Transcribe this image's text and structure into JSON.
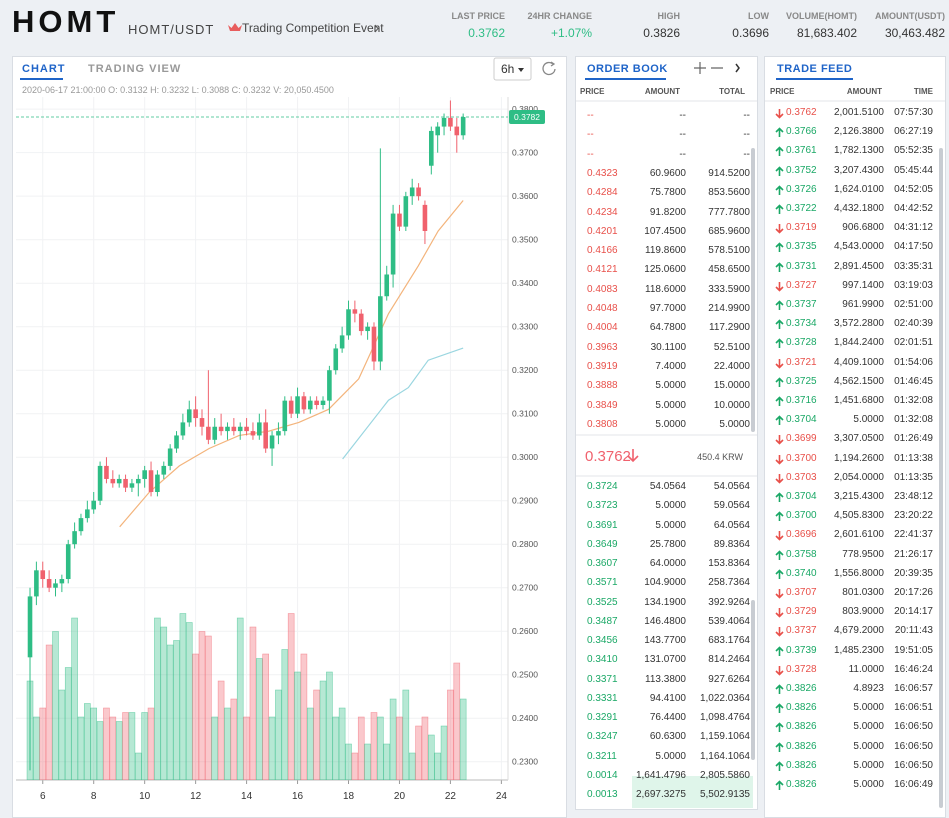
{
  "header": {
    "logo": "HOMT",
    "pair": "HOMT/USDT",
    "event": "Trading Competition Event",
    "stats": [
      {
        "label": "LAST PRICE",
        "value": "0.3762",
        "color": "#2ebd85"
      },
      {
        "label": "24HR CHANGE",
        "value": "+1.07%",
        "color": "#2ebd85"
      },
      {
        "label": "HIGH",
        "value": "0.3826",
        "color": "#333333"
      },
      {
        "label": "LOW",
        "value": "0.3696",
        "color": "#333333"
      },
      {
        "label": "VOLUME(HOMT)",
        "value": "81,683.402",
        "color": "#333333"
      },
      {
        "label": "AMOUNT(USDT)",
        "value": "30,463.482",
        "color": "#333333"
      }
    ]
  },
  "chart_panel": {
    "tabs": [
      "CHART",
      "TRADING VIEW"
    ],
    "interval": "6h",
    "chart": {
      "type": "candlestick",
      "ohlc": "2020-06-17 21:00:00   O: 0.3132   H: 0.3232   L: 0.3088   C: 0.3232   V: 20,050.4500",
      "up_color": "#2ebd85",
      "down_color": "#f0616d",
      "grid": true,
      "xlim": [
        4.95,
        24.26
      ],
      "xticks": [
        6,
        8,
        10,
        12,
        14,
        16,
        18,
        20,
        22,
        24
      ],
      "ylim": [
        0.2258,
        0.3828
      ],
      "yticks": [
        {
          "value": 0.23,
          "label": "0.2300"
        },
        {
          "value": 0.24,
          "label": "0.2400"
        },
        {
          "value": 0.25,
          "label": "0.2500"
        },
        {
          "value": 0.26,
          "label": "0.2600"
        },
        {
          "value": 0.27,
          "label": "0.2700"
        },
        {
          "value": 0.28,
          "label": "0.2800"
        },
        {
          "value": 0.29,
          "label": "0.2900"
        },
        {
          "value": 0.3,
          "label": "0.3000"
        },
        {
          "value": 0.31,
          "label": "0.3100"
        },
        {
          "value": 0.32,
          "label": "0.3200"
        },
        {
          "value": 0.33,
          "label": "0.3300"
        },
        {
          "value": 0.34,
          "label": "0.3400"
        },
        {
          "value": 0.35,
          "label": "0.3500"
        },
        {
          "value": 0.36,
          "label": "0.3600"
        },
        {
          "value": 0.37,
          "label": "0.3700"
        },
        {
          "value": 0.38,
          "label": "0.3800"
        }
      ],
      "vlim": [
        0,
        40000
      ],
      "current_price": 0.3782,
      "x": [
        5.5,
        5.75,
        6,
        6.25,
        6.5,
        6.75,
        7,
        7.25,
        7.5,
        7.75,
        8,
        8.25,
        8.5,
        8.75,
        9,
        9.25,
        9.5,
        9.75,
        10,
        10.25,
        10.5,
        10.75,
        11,
        11.25,
        11.5,
        11.75,
        12,
        12.25,
        12.5,
        12.75,
        13,
        13.25,
        13.5,
        13.75,
        14,
        14.25,
        14.5,
        14.75,
        15,
        15.25,
        15.5,
        15.75,
        16,
        16.25,
        16.5,
        16.75,
        17,
        17.25,
        17.5,
        17.75,
        18,
        18.25,
        18.5,
        18.75,
        19,
        19.25,
        19.5,
        19.75,
        20,
        20.25,
        20.5,
        20.75,
        21,
        21.25,
        21.5,
        21.75,
        22,
        22.25,
        22.5
      ],
      "open": [
        0.254,
        0.268,
        0.274,
        0.272,
        0.27,
        0.271,
        0.272,
        0.28,
        0.283,
        0.286,
        0.288,
        0.29,
        0.298,
        0.295,
        0.294,
        0.295,
        0.293,
        0.294,
        0.295,
        0.297,
        0.292,
        0.296,
        0.298,
        0.302,
        0.305,
        0.308,
        0.311,
        0.309,
        0.307,
        0.304,
        0.307,
        0.306,
        0.307,
        0.306,
        0.307,
        0.306,
        0.305,
        0.308,
        0.302,
        0.305,
        0.306,
        0.313,
        0.31,
        0.314,
        0.311,
        0.313,
        0.312,
        0.313,
        0.32,
        0.325,
        0.328,
        0.334,
        0.333,
        0.329,
        0.33,
        0.322,
        0.337,
        0.342,
        0.356,
        0.353,
        0.36,
        0.362,
        0.358,
        0.367,
        0.374,
        0.376,
        0.378,
        0.376,
        0.374
      ],
      "high": [
        0.27,
        0.276,
        0.276,
        0.274,
        0.272,
        0.273,
        0.281,
        0.285,
        0.287,
        0.29,
        0.292,
        0.299,
        0.3,
        0.297,
        0.296,
        0.296,
        0.295,
        0.296,
        0.298,
        0.299,
        0.297,
        0.299,
        0.303,
        0.306,
        0.31,
        0.313,
        0.314,
        0.311,
        0.32,
        0.309,
        0.31,
        0.308,
        0.309,
        0.308,
        0.309,
        0.308,
        0.31,
        0.311,
        0.306,
        0.308,
        0.314,
        0.314,
        0.316,
        0.315,
        0.314,
        0.314,
        0.314,
        0.321,
        0.326,
        0.33,
        0.336,
        0.336,
        0.334,
        0.331,
        0.331,
        0.371,
        0.344,
        0.358,
        0.358,
        0.361,
        0.364,
        0.363,
        0.359,
        0.376,
        0.377,
        0.379,
        0.382,
        0.378,
        0.379
      ],
      "low": [
        0.228,
        0.266,
        0.27,
        0.269,
        0.268,
        0.269,
        0.271,
        0.279,
        0.282,
        0.285,
        0.287,
        0.289,
        0.294,
        0.293,
        0.293,
        0.292,
        0.292,
        0.291,
        0.293,
        0.291,
        0.291,
        0.295,
        0.297,
        0.301,
        0.304,
        0.307,
        0.307,
        0.305,
        0.303,
        0.303,
        0.305,
        0.304,
        0.305,
        0.304,
        0.305,
        0.304,
        0.304,
        0.301,
        0.298,
        0.303,
        0.305,
        0.309,
        0.309,
        0.31,
        0.31,
        0.311,
        0.311,
        0.31,
        0.319,
        0.324,
        0.327,
        0.331,
        0.328,
        0.327,
        0.32,
        0.32,
        0.336,
        0.339,
        0.352,
        0.352,
        0.358,
        0.359,
        0.349,
        0.365,
        0.37,
        0.374,
        0.375,
        0.37,
        0.373
      ],
      "close": [
        0.268,
        0.274,
        0.272,
        0.27,
        0.271,
        0.272,
        0.28,
        0.283,
        0.286,
        0.288,
        0.29,
        0.298,
        0.295,
        0.294,
        0.295,
        0.293,
        0.294,
        0.295,
        0.297,
        0.292,
        0.296,
        0.298,
        0.302,
        0.305,
        0.308,
        0.311,
        0.309,
        0.307,
        0.304,
        0.307,
        0.306,
        0.307,
        0.306,
        0.307,
        0.306,
        0.305,
        0.308,
        0.302,
        0.305,
        0.306,
        0.313,
        0.31,
        0.314,
        0.311,
        0.313,
        0.312,
        0.313,
        0.32,
        0.325,
        0.328,
        0.334,
        0.333,
        0.329,
        0.33,
        0.322,
        0.337,
        0.342,
        0.356,
        0.353,
        0.36,
        0.362,
        0.36,
        0.352,
        0.375,
        0.376,
        0.378,
        0.376,
        0.374,
        0.3782
      ],
      "volume": [
        22000,
        14000,
        16000,
        30000,
        33000,
        20000,
        25000,
        36000,
        14000,
        17000,
        16000,
        13000,
        16000,
        14000,
        13000,
        15000,
        15000,
        6000,
        15000,
        16000,
        36000,
        34000,
        30000,
        31000,
        37000,
        35000,
        28000,
        33000,
        32000,
        14000,
        22000,
        16000,
        18000,
        36000,
        14000,
        34000,
        27000,
        28000,
        14000,
        20000,
        29000,
        37000,
        24000,
        28000,
        16000,
        20000,
        22000,
        24000,
        14000,
        16000,
        8000,
        6000,
        14000,
        8000,
        15000,
        14000,
        8000,
        18000,
        14000,
        20000,
        6000,
        12000,
        14000,
        10000,
        6000,
        12000,
        20000,
        26000,
        18000
      ],
      "ma": [
        {
          "color": "#f3b47c",
          "x": [
            9.02,
            10.19,
            11.36,
            12.53,
            13.71,
            14.88,
            16.05,
            17.22,
            18.4,
            19.57,
            20.74,
            21.52,
            22.5
          ],
          "values": [
            0.284,
            0.292,
            0.298,
            0.302,
            0.305,
            0.306,
            0.308,
            0.311,
            0.318,
            0.333,
            0.344,
            0.352,
            0.359
          ]
        },
        {
          "color": "#9ad6e0",
          "x": [
            17.77,
            19.57,
            20.35,
            21.13,
            22.5
          ],
          "values": [
            0.2996,
            0.3131,
            0.316,
            0.3223,
            0.3251
          ]
        }
      ]
    }
  },
  "order_book": {
    "title": "ORDER BOOK",
    "columns": [
      "PRICE",
      "AMOUNT",
      "TOTAL"
    ],
    "asks": [
      [
        "--",
        "--",
        "--"
      ],
      [
        "--",
        "--",
        "--"
      ],
      [
        "--",
        "--",
        "--"
      ],
      [
        "0.4323",
        "60.9600",
        "914.5200"
      ],
      [
        "0.4284",
        "75.7800",
        "853.5600"
      ],
      [
        "0.4234",
        "91.8200",
        "777.7800"
      ],
      [
        "0.4201",
        "107.4500",
        "685.9600"
      ],
      [
        "0.4166",
        "119.8600",
        "578.5100"
      ],
      [
        "0.4121",
        "125.0600",
        "458.6500"
      ],
      [
        "0.4083",
        "118.6000",
        "333.5900"
      ],
      [
        "0.4048",
        "97.7000",
        "214.9900"
      ],
      [
        "0.4004",
        "64.7800",
        "117.2900"
      ],
      [
        "0.3963",
        "30.1100",
        "52.5100"
      ],
      [
        "0.3919",
        "7.4000",
        "22.4000"
      ],
      [
        "0.3888",
        "5.0000",
        "15.0000"
      ],
      [
        "0.3849",
        "5.0000",
        "10.0000"
      ],
      [
        "0.3808",
        "5.0000",
        "5.0000"
      ]
    ],
    "mid_price": "0.3762",
    "mid_krw": "450.4 KRW",
    "bids": [
      [
        "0.3724",
        "54.0564",
        "54.0564"
      ],
      [
        "0.3723",
        "5.0000",
        "59.0564"
      ],
      [
        "0.3691",
        "5.0000",
        "64.0564"
      ],
      [
        "0.3649",
        "25.7800",
        "89.8364"
      ],
      [
        "0.3607",
        "64.0000",
        "153.8364"
      ],
      [
        "0.3571",
        "104.9000",
        "258.7364"
      ],
      [
        "0.3525",
        "134.1900",
        "392.9264"
      ],
      [
        "0.3487",
        "146.4800",
        "539.4064"
      ],
      [
        "0.3456",
        "143.7700",
        "683.1764"
      ],
      [
        "0.3410",
        "131.0700",
        "814.2464"
      ],
      [
        "0.3371",
        "113.3800",
        "927.6264"
      ],
      [
        "0.3331",
        "94.4100",
        "1,022.0364"
      ],
      [
        "0.3291",
        "76.4400",
        "1,098.4764"
      ],
      [
        "0.3247",
        "60.6300",
        "1,159.1064"
      ],
      [
        "0.3211",
        "5.0000",
        "1,164.1064"
      ],
      [
        "0.0014",
        "1,641.4796",
        "2,805.5860"
      ],
      [
        "0.0013",
        "2,697.3275",
        "5,502.9135"
      ]
    ]
  },
  "trade_feed": {
    "title": "TRADE FEED",
    "columns": [
      "PRICE",
      "AMOUNT",
      "TIME"
    ],
    "rows": [
      [
        "0.3762",
        "2,001.5100",
        "07:57:30",
        "down"
      ],
      [
        "0.3766",
        "2,126.3800",
        "06:27:19",
        "up"
      ],
      [
        "0.3761",
        "1,782.1300",
        "05:52:35",
        "up"
      ],
      [
        "0.3752",
        "3,207.4300",
        "05:45:44",
        "up"
      ],
      [
        "0.3726",
        "1,624.0100",
        "04:52:05",
        "up"
      ],
      [
        "0.3722",
        "4,432.1800",
        "04:42:52",
        "up"
      ],
      [
        "0.3719",
        "906.6800",
        "04:31:12",
        "down"
      ],
      [
        "0.3735",
        "4,543.0000",
        "04:17:50",
        "up"
      ],
      [
        "0.3731",
        "2,891.4500",
        "03:35:31",
        "up"
      ],
      [
        "0.3727",
        "997.1400",
        "03:19:03",
        "down"
      ],
      [
        "0.3737",
        "961.9900",
        "02:51:00",
        "up"
      ],
      [
        "0.3734",
        "3,572.2800",
        "02:40:39",
        "up"
      ],
      [
        "0.3728",
        "1,844.2400",
        "02:01:51",
        "up"
      ],
      [
        "0.3721",
        "4,409.1000",
        "01:54:06",
        "down"
      ],
      [
        "0.3725",
        "4,562.1500",
        "01:46:45",
        "up"
      ],
      [
        "0.3716",
        "1,451.6800",
        "01:32:08",
        "up"
      ],
      [
        "0.3704",
        "5.0000",
        "01:32:08",
        "up"
      ],
      [
        "0.3699",
        "3,307.0500",
        "01:26:49",
        "down"
      ],
      [
        "0.3700",
        "1,194.2600",
        "01:13:38",
        "down"
      ],
      [
        "0.3703",
        "2,054.0000",
        "01:13:35",
        "down"
      ],
      [
        "0.3704",
        "3,215.4300",
        "23:48:12",
        "up"
      ],
      [
        "0.3700",
        "4,505.8300",
        "23:20:22",
        "up"
      ],
      [
        "0.3696",
        "2,601.6100",
        "22:41:37",
        "down"
      ],
      [
        "0.3758",
        "778.9500",
        "21:26:17",
        "up"
      ],
      [
        "0.3740",
        "1,556.8000",
        "20:39:35",
        "up"
      ],
      [
        "0.3707",
        "801.0300",
        "20:17:26",
        "down"
      ],
      [
        "0.3729",
        "803.9000",
        "20:14:17",
        "down"
      ],
      [
        "0.3737",
        "4,679.2000",
        "20:11:43",
        "down"
      ],
      [
        "0.3739",
        "1,485.2300",
        "19:51:05",
        "up"
      ],
      [
        "0.3728",
        "11.0000",
        "16:46:24",
        "down"
      ],
      [
        "0.3826",
        "4.8923",
        "16:06:57",
        "up"
      ],
      [
        "0.3826",
        "5.0000",
        "16:06:51",
        "up"
      ],
      [
        "0.3826",
        "5.0000",
        "16:06:50",
        "up"
      ],
      [
        "0.3826",
        "5.0000",
        "16:06:50",
        "up"
      ],
      [
        "0.3826",
        "5.0000",
        "16:06:50",
        "up"
      ],
      [
        "0.3826",
        "5.0000",
        "16:06:49",
        "up"
      ]
    ]
  }
}
